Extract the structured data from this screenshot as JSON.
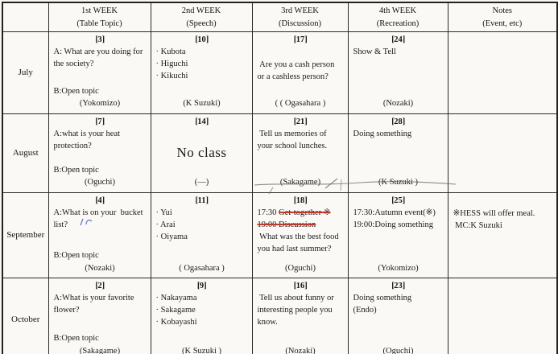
{
  "colors": {
    "paper": "#faf9f5",
    "ink": "#1b1b1b",
    "border": "#2a2a2a",
    "strike_red": "#bf3a2b",
    "pen_blue": "#4a66b8"
  },
  "headers": [
    {
      "line1": "",
      "line2": ""
    },
    {
      "line1": "1st WEEK",
      "line2": "(Table Topic)"
    },
    {
      "line1": "2nd WEEK",
      "line2": "(Speech)"
    },
    {
      "line1": "3rd WEEK",
      "line2": "(Discussion)"
    },
    {
      "line1": "4th WEEK",
      "line2": "(Recreation)"
    },
    {
      "line1": "Notes",
      "line2": "(Event, etc)"
    }
  ],
  "rows": [
    {
      "month": "July",
      "cells": [
        {
          "date": "【3】",
          "lines": [
            {
              "t": "text",
              "v": "A: What are you doing for the society?"
            },
            {
              "t": "gap"
            },
            {
              "t": "text",
              "v": "B:Open topic"
            }
          ],
          "name": "(Yokomizo)"
        },
        {
          "date": "【10】",
          "lines": [
            {
              "t": "text",
              "v": "· Kubota"
            },
            {
              "t": "text",
              "v": "· Higuchi"
            },
            {
              "t": "text",
              "v": "· Kikuchi"
            },
            {
              "t": "gap"
            }
          ],
          "name": "(K Suzuki)"
        },
        {
          "date": "【17】",
          "lines": [
            {
              "t": "vspace"
            },
            {
              "t": "text",
              "v": " Are you a cash person or a cashless person?"
            },
            {
              "t": "gap"
            }
          ],
          "name": "( ( Ogasahara )"
        },
        {
          "date": "【24】",
          "lines": [
            {
              "t": "text",
              "v": "Show & Tell"
            },
            {
              "t": "gap"
            }
          ],
          "name": "(Nozaki)"
        },
        {
          "lines": [],
          "name": ""
        }
      ]
    },
    {
      "month": "August",
      "cells": [
        {
          "date": "【7】",
          "lines": [
            {
              "t": "text",
              "v": "A:what is your heat protection?"
            },
            {
              "t": "gap"
            },
            {
              "t": "text",
              "v": "B:Open topic"
            }
          ],
          "name": "(Oguchi)"
        },
        {
          "date": "【14】",
          "lines": [
            {
              "t": "gap"
            },
            {
              "t": "big",
              "v": "No class"
            },
            {
              "t": "gap"
            }
          ],
          "name": "(—)"
        },
        {
          "date": "【21】",
          "lines": [
            {
              "t": "text",
              "v": " Tell us memories of your school lunches."
            },
            {
              "t": "gap"
            }
          ],
          "name": "(Sakagame)"
        },
        {
          "date": "【28】",
          "lines": [
            {
              "t": "text",
              "v": "Doing something"
            },
            {
              "t": "gap"
            }
          ],
          "name": "(K Suzuki )"
        },
        {
          "lines": [],
          "name": ""
        }
      ]
    },
    {
      "month": "September",
      "cells": [
        {
          "date": "【4】",
          "lines": [
            {
              "t": "text",
              "v": "A:What is on your  bucket list?"
            },
            {
              "t": "gap"
            },
            {
              "t": "text",
              "v": "B:Open topic"
            }
          ],
          "name": "(Nozaki)"
        },
        {
          "date": "【11】",
          "lines": [
            {
              "t": "text",
              "v": "· Yui"
            },
            {
              "t": "text",
              "v": "· Arai"
            },
            {
              "t": "text",
              "v": "· Oiyama"
            },
            {
              "t": "gap"
            }
          ],
          "name": "( Ogasahara )"
        },
        {
          "date": "【18】",
          "lines": [
            {
              "t": "strike",
              "pre": "17:30 ",
              "v": "Get-together ※"
            },
            {
              "t": "strike",
              "pre": "",
              "v": "19:00 Discussion"
            },
            {
              "t": "text",
              "v": " What was the best food you had last summer?"
            },
            {
              "t": "gap"
            }
          ],
          "name": "(Oguchi)"
        },
        {
          "date": "【25】",
          "lines": [
            {
              "t": "text",
              "v": "17:30:Autumn event(※)"
            },
            {
              "t": "text",
              "v": "19:00:Doing something"
            },
            {
              "t": "gap"
            }
          ],
          "name": "(Yokomizo)"
        },
        {
          "lines": [
            {
              "t": "vspace"
            },
            {
              "t": "text",
              "v": "※HESS will offer meal."
            },
            {
              "t": "text",
              "v": " MC:K Suzuki"
            }
          ],
          "name": ""
        }
      ]
    },
    {
      "month": "October",
      "cells": [
        {
          "date": "【2】",
          "lines": [
            {
              "t": "text",
              "v": "A:What is your favorite flower?"
            },
            {
              "t": "gap"
            },
            {
              "t": "text",
              "v": "B:Open topic"
            }
          ],
          "name": "(Sakagame)"
        },
        {
          "date": "【9】",
          "lines": [
            {
              "t": "text",
              "v": "· Nakayama"
            },
            {
              "t": "text",
              "v": "· Sakagame"
            },
            {
              "t": "text",
              "v": "· Kobayashi"
            },
            {
              "t": "gap"
            }
          ],
          "name": "(K Suzuki )"
        },
        {
          "date": "【16】",
          "lines": [
            {
              "t": "text",
              "v": " Tell us about funny or interesting people you know."
            },
            {
              "t": "gap"
            }
          ],
          "name": "(Nozaki)"
        },
        {
          "date": "【23】",
          "lines": [
            {
              "t": "text",
              "v": "Doing something"
            },
            {
              "t": "text",
              "v": "(Endo)"
            },
            {
              "t": "gap"
            }
          ],
          "name": "(Oguchi)"
        },
        {
          "lines": [],
          "name": ""
        }
      ]
    }
  ]
}
